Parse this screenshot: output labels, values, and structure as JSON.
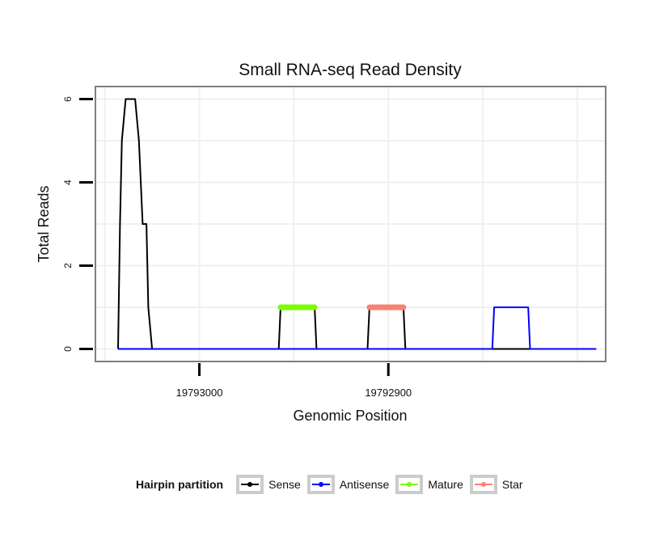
{
  "chart_data": {
    "type": "line",
    "title": "Small RNA-seq Read Density",
    "xlabel": "Genomic Position",
    "ylabel": "Total Reads",
    "x_reversed": true,
    "xlim": [
      19793055,
      19792785
    ],
    "ylim": [
      -0.3,
      6.3
    ],
    "xticks": [
      19793000,
      19792900
    ],
    "xtick_labels": [
      "19793000",
      "19792900"
    ],
    "yticks": [
      0,
      2,
      4,
      6
    ],
    "ytick_labels": [
      "0",
      "2",
      "4",
      "6"
    ],
    "grid": true,
    "series": [
      {
        "name": "Sense",
        "color": "#000000",
        "x": [
          19793043,
          19793042,
          19793041,
          19793039,
          19793034,
          19793032,
          19793031,
          19793030,
          19793028,
          19793027,
          19793025,
          19793015,
          19792958,
          19792957,
          19792939,
          19792938,
          19792911,
          19792910,
          19792892,
          19792891,
          19792790
        ],
        "values": [
          0,
          3,
          5,
          6,
          6,
          5,
          4,
          3,
          3,
          1,
          0,
          0,
          0,
          1,
          1,
          0,
          0,
          1,
          1,
          0,
          0
        ]
      },
      {
        "name": "Antisense",
        "color": "#0000ff",
        "x": [
          19793043,
          19792845,
          19792844,
          19792826,
          19792825,
          19792790
        ],
        "values": [
          0,
          0,
          1,
          1,
          0,
          0
        ]
      },
      {
        "name": "Mature",
        "color": "#7cfc00",
        "x": [
          19792957,
          19792939
        ],
        "values": [
          1,
          1
        ]
      },
      {
        "name": "Star",
        "color": "#fa8072",
        "x": [
          19792910,
          19792892
        ],
        "values": [
          1,
          1
        ]
      }
    ],
    "legend": {
      "title": "Hairpin partition",
      "position": "bottom",
      "entries": [
        {
          "label": "Sense",
          "color": "#000000"
        },
        {
          "label": "Antisense",
          "color": "#0000ff"
        },
        {
          "label": "Mature",
          "color": "#7cfc00"
        },
        {
          "label": "Star",
          "color": "#fa8072"
        }
      ]
    }
  }
}
